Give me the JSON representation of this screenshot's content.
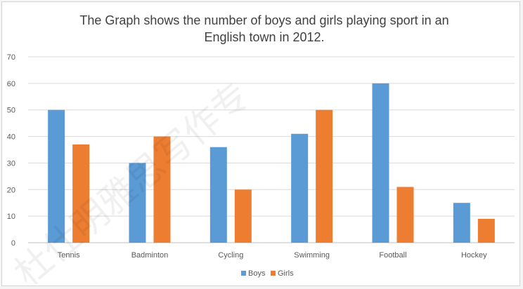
{
  "chart_data": {
    "type": "bar",
    "title": [
      "The Graph shows the number of boys and girls playing sport in an",
      "English town in 2012."
    ],
    "xlabel": "",
    "ylabel": "",
    "ylim": [
      0,
      70
    ],
    "yticks": [
      0,
      10,
      20,
      30,
      40,
      50,
      60,
      70
    ],
    "categories": [
      "Tennis",
      "Badminton",
      "Cycling",
      "Swimming",
      "Football",
      "Hockey"
    ],
    "series": [
      {
        "name": "Boys",
        "color": "#5b9bd5",
        "values": [
          50,
          30,
          36,
          41,
          60,
          15
        ]
      },
      {
        "name": "Girls",
        "color": "#ed7d31",
        "values": [
          37,
          40,
          20,
          50,
          21,
          9
        ]
      }
    ],
    "grid": true,
    "legend_position": "bottom"
  },
  "watermark": {
    "text": "杜仕明雅思写作专",
    "note": "faint diagonal watermark"
  }
}
